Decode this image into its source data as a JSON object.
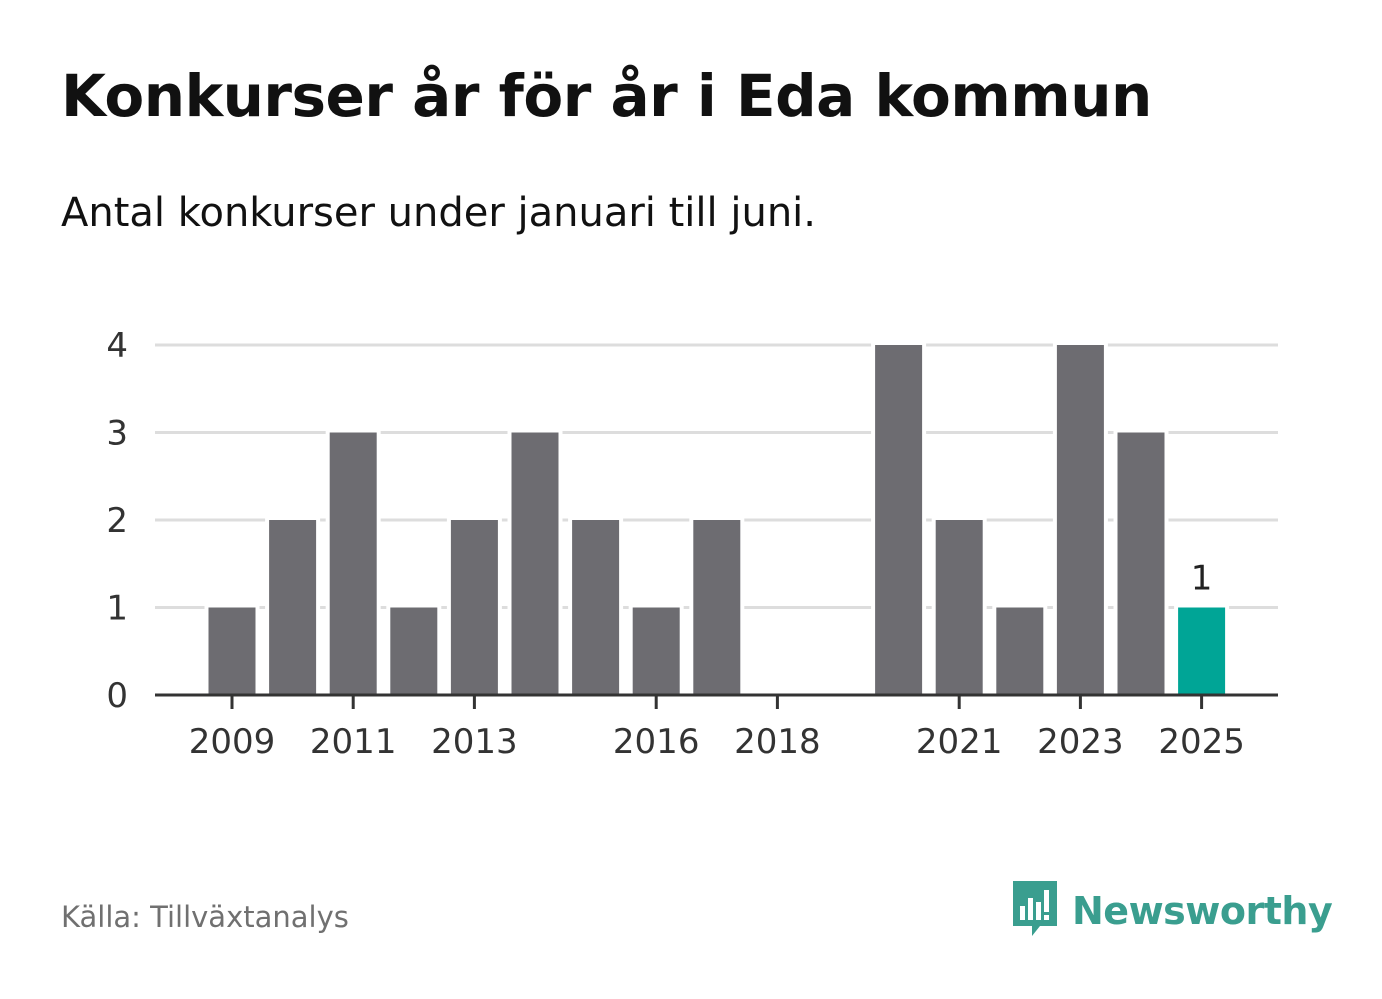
{
  "title": "Konkurser år för år i Eda kommun",
  "subtitle": "Antal konkurser under januari till juni.",
  "source": "Källa: Tillväxtanalys",
  "brand": {
    "name": "Newsworthy",
    "icon": "bar-chart-speech-bubble-icon",
    "color": "#3a9e8f"
  },
  "colors": {
    "bar": "#6d6c71",
    "highlight": "#00a596",
    "grid": "#dddddd",
    "axis": "#333333",
    "tick_text": "#333333"
  },
  "chart_data": {
    "type": "bar",
    "categories": [
      "2009",
      "2010",
      "2011",
      "2012",
      "2013",
      "2014",
      "2015",
      "2016",
      "2017",
      "2018",
      "2019",
      "2020",
      "2021",
      "2022",
      "2023",
      "2024",
      "2025"
    ],
    "values": [
      1,
      2,
      3,
      1,
      2,
      3,
      2,
      1,
      2,
      0,
      0,
      4,
      2,
      1,
      4,
      3,
      1
    ],
    "x_tick_labels": [
      "2009",
      "2011",
      "2013",
      "2016",
      "2018",
      "2021",
      "2023",
      "2025"
    ],
    "y_ticks": [
      0,
      1,
      2,
      3,
      4
    ],
    "ylim": [
      0,
      4
    ],
    "highlight_category": "2025",
    "data_labels": [
      {
        "category": "2025",
        "value": 1,
        "text": "1"
      }
    ],
    "grid": true,
    "legend": "none",
    "title": "Konkurser år för år i Eda kommun",
    "xlabel": "",
    "ylabel": ""
  }
}
